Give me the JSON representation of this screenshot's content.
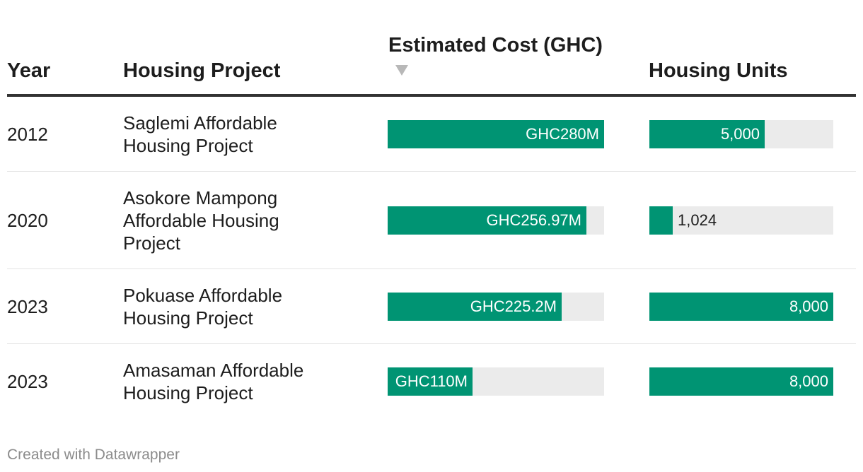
{
  "table": {
    "headers": {
      "year": "Year",
      "project": "Housing Project",
      "cost": "Estimated Cost (GHC)",
      "units": "Housing Units"
    },
    "sort_arrow_icon": "sort-descending-icon"
  },
  "colors": {
    "bar": "#009473",
    "track": "#ebebeb"
  },
  "chart_data": {
    "type": "table",
    "columns": [
      "Year",
      "Housing Project",
      "Estimated Cost (GHC)",
      "Housing Units"
    ],
    "cost_max": 280,
    "units_max": 8000,
    "rows": [
      {
        "year": "2012",
        "project": "Saglemi Affordable Housing Project",
        "cost": 280,
        "cost_label": "GHC280M",
        "units": 5000,
        "units_label": "5,000"
      },
      {
        "year": "2020",
        "project": "Asokore Mampong Affordable Housing Project",
        "cost": 256.97,
        "cost_label": "GHC256.97M",
        "units": 1024,
        "units_label": "1,024"
      },
      {
        "year": "2023",
        "project": "Pokuase Affordable Housing Project",
        "cost": 225.2,
        "cost_label": "GHC225.2M",
        "units": 8000,
        "units_label": "8,000"
      },
      {
        "year": "2023",
        "project": "Amasaman Affordable Housing Project",
        "cost": 110,
        "cost_label": "GHC110M",
        "units": 8000,
        "units_label": "8,000"
      }
    ]
  },
  "footer": {
    "credit": "Created with Datawrapper"
  }
}
